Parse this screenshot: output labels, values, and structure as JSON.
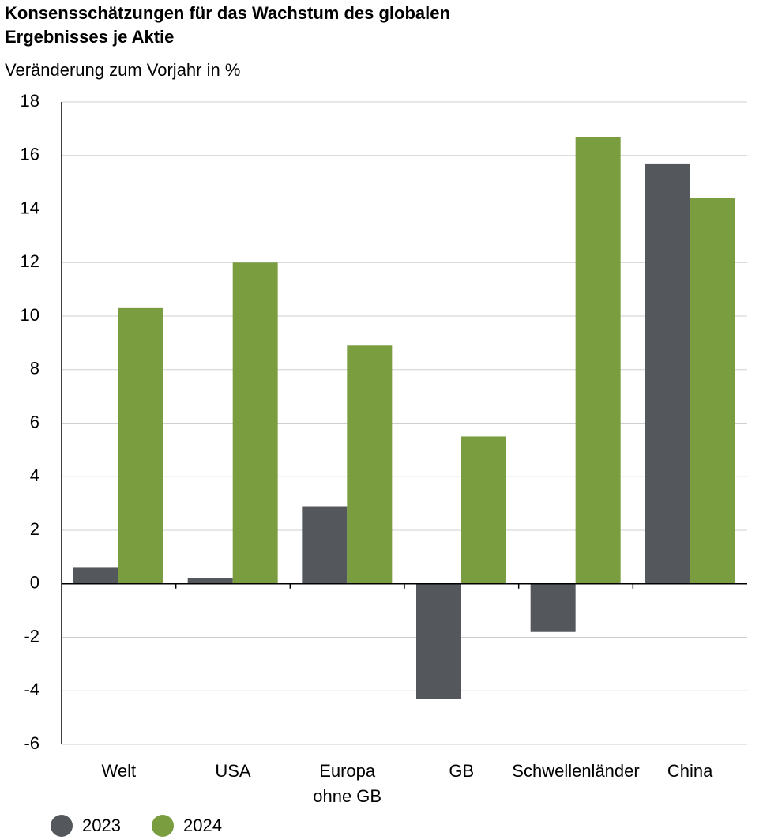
{
  "chart_data": {
    "type": "bar",
    "title": "Konsensschätzungen für das Wachstum des globalen Ergebnisses je Aktie",
    "subtitle": "Veränderung zum Vorjahr in %",
    "categories": [
      "Welt",
      "USA",
      [
        "Europa",
        "ohne GB"
      ],
      "GB",
      "Schwellenländer",
      "China"
    ],
    "series": [
      {
        "name": "2023",
        "color": "#54585c",
        "values": [
          0.6,
          0.2,
          2.9,
          -4.3,
          -1.8,
          15.7
        ]
      },
      {
        "name": "2024",
        "color": "#7a9e3f",
        "values": [
          10.3,
          12.0,
          8.9,
          5.5,
          16.7,
          14.4
        ]
      }
    ],
    "ylim": [
      -6,
      18
    ],
    "yticks": [
      -6,
      -4,
      -2,
      0,
      2,
      4,
      6,
      8,
      10,
      12,
      14,
      16,
      18
    ],
    "grid": true,
    "legend": "bottom-left"
  }
}
